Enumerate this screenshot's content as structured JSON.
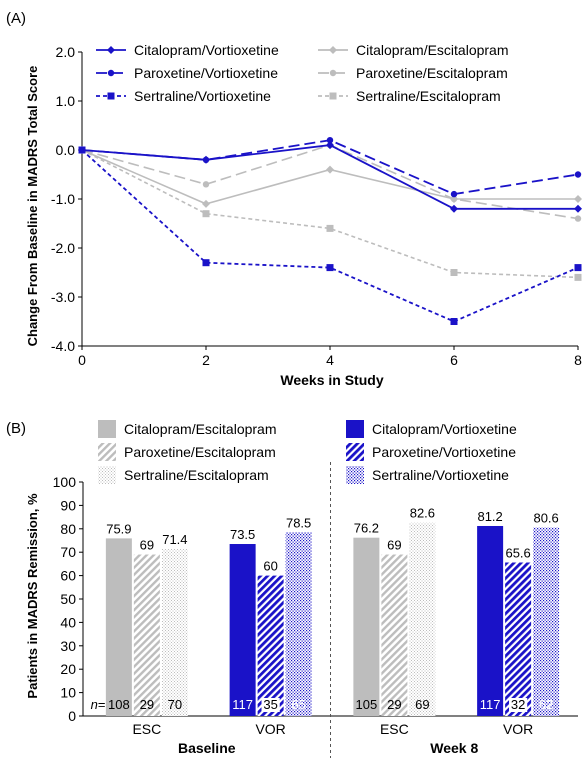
{
  "colors": {
    "vor": "#1a12c8",
    "esc": "#bdbdbd",
    "axis": "#000000"
  },
  "chart_data": [
    {
      "panel_label": "(A)",
      "type": "line",
      "xlabel": "Weeks in Study",
      "ylabel": "Change From Baseline in MADRS Total Score",
      "x": [
        0,
        2,
        4,
        6,
        8
      ],
      "xticks": [
        "0",
        "2",
        "4",
        "6",
        "8"
      ],
      "yticks": [
        "2.0",
        "1.0",
        "0.0",
        "-1.0",
        "-2.0",
        "-3.0",
        "-4.0"
      ],
      "xlim": [
        0,
        8
      ],
      "ylim": [
        -4.0,
        2.0
      ],
      "legend_placement": "top",
      "series": [
        {
          "name": "Citalopram/Vortioxetine",
          "values": [
            0.0,
            -0.2,
            0.1,
            -1.2,
            -1.2
          ],
          "color": "#1a12c8",
          "dash": "solid",
          "marker": "diamond"
        },
        {
          "name": "Paroxetine/Vortioxetine",
          "values": [
            0.0,
            -0.2,
            0.2,
            -0.9,
            -0.5
          ],
          "color": "#1a12c8",
          "dash": "long",
          "marker": "circle"
        },
        {
          "name": "Sertraline/Vortioxetine",
          "values": [
            0.0,
            -2.3,
            -2.4,
            -3.5,
            -2.4
          ],
          "color": "#1a12c8",
          "dash": "short",
          "marker": "square"
        },
        {
          "name": "Citalopram/Escitalopram",
          "values": [
            0.0,
            -1.1,
            -0.4,
            -1.0,
            -1.0
          ],
          "color": "#bdbdbd",
          "dash": "solid",
          "marker": "diamond"
        },
        {
          "name": "Paroxetine/Escitalopram",
          "values": [
            0.0,
            -0.7,
            0.1,
            -1.0,
            -1.4
          ],
          "color": "#bdbdbd",
          "dash": "long",
          "marker": "circle"
        },
        {
          "name": "Sertraline/Escitalopram",
          "values": [
            0.0,
            -1.3,
            -1.6,
            -2.5,
            -2.6
          ],
          "color": "#bdbdbd",
          "dash": "short",
          "marker": "square"
        }
      ]
    },
    {
      "panel_label": "(B)",
      "type": "bar",
      "ylabel": "Patients in MADRS Remission, %",
      "ylim": [
        0,
        100
      ],
      "yticks": [
        "0",
        "10",
        "20",
        "30",
        "40",
        "50",
        "60",
        "70",
        "80",
        "90",
        "100"
      ],
      "n_prefix": "n",
      "legend": {
        "left": [
          "Citalopram/Escitalopram",
          "Paroxetine/Escitalopram",
          "Sertraline/Escitalopram"
        ],
        "right": [
          "Citalopram/Vortioxetine",
          "Paroxetine/Vortioxetine",
          "Sertraline/Vortioxetine"
        ]
      },
      "timepoints": [
        {
          "label": "Baseline",
          "groups": [
            {
              "label": "ESC",
              "drug": "esc",
              "values": [
                "75.9",
                "69",
                "71.4"
              ],
              "n": [
                "108",
                "29",
                "70"
              ]
            },
            {
              "label": "VOR",
              "drug": "vor",
              "values": [
                "73.5",
                "60",
                "78.5"
              ],
              "n": [
                "117",
                "35",
                "65"
              ]
            }
          ]
        },
        {
          "label": "Week 8",
          "groups": [
            {
              "label": "ESC",
              "drug": "esc",
              "values": [
                "76.2",
                "69",
                "82.6"
              ],
              "n": [
                "105",
                "29",
                "69"
              ]
            },
            {
              "label": "VOR",
              "drug": "vor",
              "values": [
                "81.2",
                "65.6",
                "80.6"
              ],
              "n": [
                "117",
                "32",
                "62"
              ]
            }
          ]
        }
      ]
    }
  ]
}
